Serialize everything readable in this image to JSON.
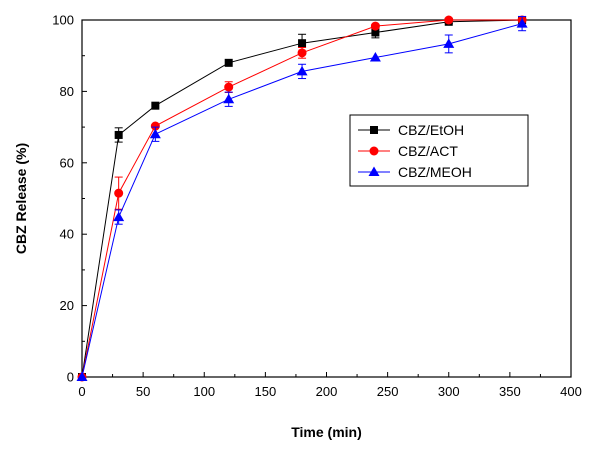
{
  "chart_data": {
    "type": "line",
    "xlabel": "Time (min)",
    "ylabel": "CBZ Release (%)",
    "xlim": [
      0,
      400
    ],
    "ylim": [
      0,
      100
    ],
    "x_ticks": [
      0,
      50,
      100,
      150,
      200,
      250,
      300,
      350,
      400
    ],
    "y_ticks": [
      0,
      20,
      40,
      60,
      80,
      100
    ],
    "grid": false,
    "legend_position": "right-center",
    "series": [
      {
        "name": "CBZ/EtOH",
        "color": "#000000",
        "marker": "square",
        "x": [
          0,
          30,
          60,
          120,
          180,
          240,
          300,
          360
        ],
        "y": [
          0,
          67.8,
          76,
          88,
          93.5,
          96.5,
          99.5,
          100
        ],
        "error": [
          0,
          2,
          0,
          0,
          2.5,
          1.5,
          0.5,
          0
        ]
      },
      {
        "name": "CBZ/ACT",
        "color": "#ff0000",
        "marker": "circle",
        "x": [
          0,
          30,
          60,
          120,
          180,
          240,
          300,
          360
        ],
        "y": [
          0,
          51.5,
          70.3,
          81.2,
          90.8,
          98.3,
          100,
          100
        ],
        "error": [
          0,
          4.5,
          0,
          1.5,
          1.5,
          0.5,
          0,
          0
        ]
      },
      {
        "name": "CBZ/MEOH",
        "color": "#0000ff",
        "marker": "triangle",
        "x": [
          0,
          30,
          60,
          120,
          180,
          240,
          300,
          360
        ],
        "y": [
          0,
          44.8,
          68,
          77.8,
          85.6,
          89.5,
          93.3,
          99
        ],
        "error": [
          0,
          2,
          2,
          2,
          2,
          0,
          2.5,
          2
        ]
      }
    ]
  }
}
